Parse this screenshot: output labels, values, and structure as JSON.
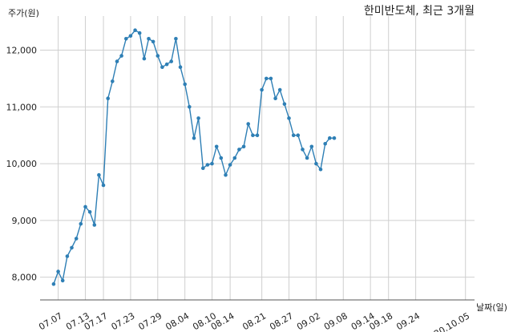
{
  "chart_data": {
    "type": "line",
    "title": "한미반도체, 최근 3개월",
    "ylabel": "주가(원)",
    "xlabel": "날짜(일)",
    "ylim": [
      7600,
      12600
    ],
    "yticks": [
      8000,
      9000,
      10000,
      11000,
      12000
    ],
    "ytick_labels": [
      "8,000",
      "9,000",
      "10,000",
      "11,000",
      "12,000"
    ],
    "xlim": [
      "2020-07-03",
      "2020-10-07"
    ],
    "x_tick_labels": [
      "07.07",
      "07.13",
      "07.17",
      "07.23",
      "07.29",
      "08.04",
      "08.10",
      "08.14",
      "08.21",
      "08.27",
      "09.02",
      "09.08",
      "09.14",
      "09.18",
      "09.24",
      "20.10.05"
    ],
    "x_tick_dates": [
      "2020-07-07",
      "2020-07-13",
      "2020-07-17",
      "2020-07-23",
      "2020-07-29",
      "2020-08-04",
      "2020-08-10",
      "2020-08-14",
      "2020-08-21",
      "2020-08-27",
      "2020-09-02",
      "2020-09-08",
      "2020-09-14",
      "2020-09-18",
      "2020-09-24",
      "2020-10-05"
    ],
    "grid": true,
    "line_color": "#2e7fb5",
    "series": [
      {
        "x": [
          "2020-07-06",
          "2020-07-07",
          "2020-07-08",
          "2020-07-09",
          "2020-07-10",
          "2020-07-11",
          "2020-07-12",
          "2020-07-13",
          "2020-07-14",
          "2020-07-15",
          "2020-07-16",
          "2020-07-17",
          "2020-07-18",
          "2020-07-19",
          "2020-07-20",
          "2020-07-21",
          "2020-07-22",
          "2020-07-23",
          "2020-07-24",
          "2020-07-25",
          "2020-07-26",
          "2020-07-27",
          "2020-07-28",
          "2020-07-29",
          "2020-07-30",
          "2020-07-31",
          "2020-08-01",
          "2020-08-02",
          "2020-08-03",
          "2020-08-04",
          "2020-08-05",
          "2020-08-06",
          "2020-08-07",
          "2020-08-08",
          "2020-08-09",
          "2020-08-10",
          "2020-08-11",
          "2020-08-12",
          "2020-08-13",
          "2020-08-14",
          "2020-08-15",
          "2020-08-16",
          "2020-08-17",
          "2020-08-18",
          "2020-08-19",
          "2020-08-20",
          "2020-08-21",
          "2020-08-22",
          "2020-08-23",
          "2020-08-24",
          "2020-08-25",
          "2020-08-26",
          "2020-08-27",
          "2020-08-28",
          "2020-08-29",
          "2020-08-30",
          "2020-08-31",
          "2020-09-01",
          "2020-09-02",
          "2020-09-03",
          "2020-09-04",
          "2020-09-05",
          "2020-09-06",
          "2020-09-07",
          "2020-09-08",
          "2020-09-09",
          "2020-09-10",
          "2020-09-11",
          "2020-09-12",
          "2020-09-13",
          "2020-09-14",
          "2020-09-15",
          "2020-09-16",
          "2020-09-17",
          "2020-09-18",
          "2020-09-19",
          "2020-09-20",
          "2020-09-21",
          "2020-09-22",
          "2020-09-23",
          "2020-09-24",
          "2020-09-25",
          "2020-09-26",
          "2020-09-27",
          "2020-09-28",
          "2020-09-29",
          "2020-09-30",
          "2020-10-01",
          "2020-10-02",
          "2020-10-03",
          "2020-10-04",
          "2020-10-05"
        ],
        "values": [
          7880,
          8100,
          7940,
          8370,
          8520,
          8680,
          8940,
          9240,
          9150,
          8920,
          9800,
          9620,
          11150,
          11450,
          11800,
          11900,
          12200,
          12250,
          12350,
          12300,
          11850,
          12200,
          12150,
          11900,
          11700,
          11750,
          11800,
          12200,
          11700,
          11400,
          11000,
          10450,
          10800,
          9920,
          9980,
          10000,
          10300,
          10100,
          9800,
          9980,
          10100,
          10250,
          10300,
          10700,
          10500,
          10500,
          11300,
          11500,
          11500,
          11150,
          11300,
          11050,
          10800,
          10500,
          10500,
          10250,
          10100,
          10300,
          10000,
          9900,
          10350,
          10450,
          10450,
          null,
          null,
          null,
          null,
          null,
          null,
          null,
          null,
          null,
          null,
          null,
          null,
          null,
          null,
          null,
          null,
          null,
          null,
          null,
          null,
          null,
          null,
          null,
          null,
          null,
          null,
          null,
          null,
          null
        ]
      }
    ]
  }
}
